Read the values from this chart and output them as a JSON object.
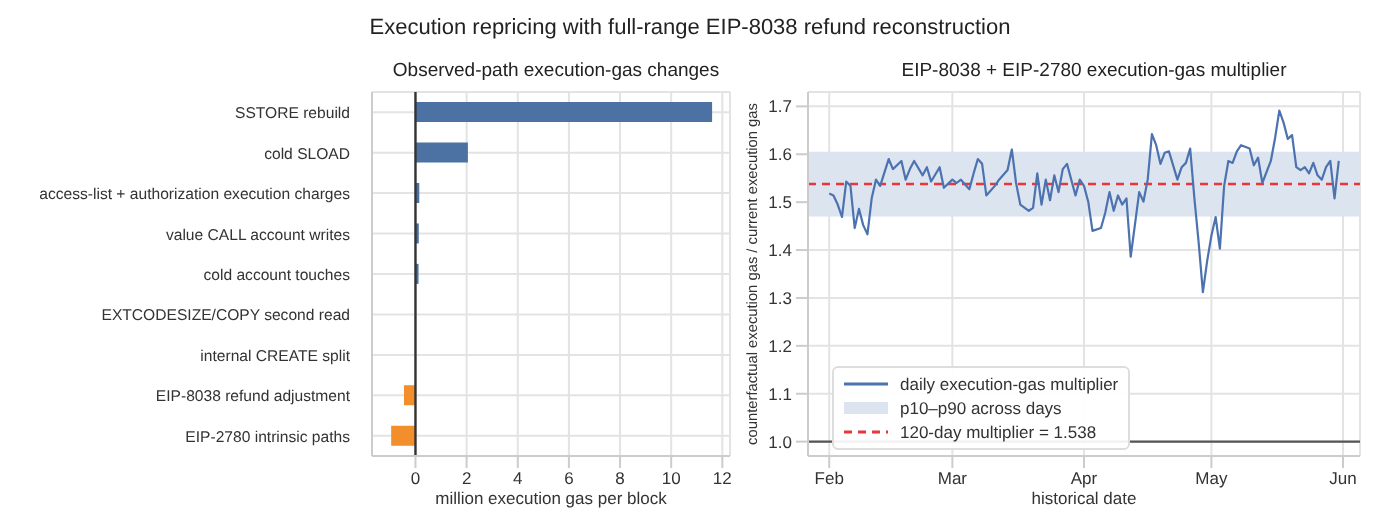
{
  "chart_data": [
    {
      "type": "bar",
      "title": "Execution repricing with full-range EIP-8038 refund reconstruction",
      "subtitle": "Observed-path execution-gas changes",
      "xlabel": "million execution gas per block",
      "orientation": "horizontal",
      "categories": [
        "SSTORE rebuild",
        "cold SLOAD",
        "access-list + authorization execution charges",
        "value CALL account writes",
        "cold account touches",
        "EXTCODESIZE/COPY second read",
        "internal CREATE split",
        "EIP-8038 refund adjustment",
        "EIP-2780 intrinsic paths"
      ],
      "values": [
        11.6,
        2.05,
        0.15,
        0.13,
        0.12,
        0.01,
        0.01,
        -0.45,
        -0.95
      ],
      "colors": [
        "#4c72a4",
        "#4c72a4",
        "#4c72a4",
        "#4c72a4",
        "#4c72a4",
        "#4c72a4",
        "#4c72a4",
        "#f28e2b",
        "#f28e2b"
      ],
      "xlim": [
        -1.7,
        12.3
      ],
      "xticks": [
        0,
        2,
        4,
        6,
        8,
        10,
        12
      ],
      "ref_lines": [
        {
          "axis": "x",
          "value": 0,
          "color": "#333333"
        }
      ],
      "grid": true
    },
    {
      "type": "line",
      "title": "EIP-8038 + EIP-2780 execution-gas multiplier",
      "xlabel": "historical date",
      "ylabel": "counterfactual execution gas / current execution gas",
      "x": [
        "--02-01",
        "--02-02",
        "--02-03",
        "--02-04",
        "--02-05",
        "--02-06",
        "--02-07",
        "--02-08",
        "--02-09",
        "--02-10",
        "--02-11",
        "--02-12",
        "--02-13",
        "--02-15",
        "--02-16",
        "--02-18",
        "--02-19",
        "--02-20",
        "--02-21",
        "--02-23",
        "--02-24",
        "--02-25",
        "--02-27",
        "--02-28",
        "--03-01",
        "--03-02",
        "--03-03",
        "--03-05",
        "--03-06",
        "--03-07",
        "--03-08",
        "--03-09",
        "--03-11",
        "--03-12",
        "--03-14",
        "--03-15",
        "--03-16",
        "--03-17",
        "--03-19",
        "--03-20",
        "--03-21",
        "--03-22",
        "--03-23",
        "--03-24",
        "--03-25",
        "--03-26",
        "--03-27",
        "--03-28",
        "--03-30",
        "--03-31",
        "--04-01",
        "--04-02",
        "--04-03",
        "--04-05",
        "--04-06",
        "--04-07",
        "--04-08",
        "--04-09",
        "--04-10",
        "--04-11",
        "--04-12",
        "--04-14",
        "--04-15",
        "--04-16",
        "--04-17",
        "--04-18",
        "--04-19",
        "--04-20",
        "--04-21",
        "--04-23",
        "--04-24",
        "--04-25",
        "--04-26",
        "--04-27",
        "--04-28",
        "--04-29",
        "--04-30",
        "--05-01",
        "--05-02",
        "--05-03",
        "--05-04",
        "--05-05",
        "--05-06",
        "--05-07",
        "--05-08",
        "--05-10",
        "--05-11",
        "--05-12",
        "--05-13",
        "--05-15",
        "--05-16",
        "--05-17",
        "--05-18",
        "--05-19",
        "--05-20",
        "--05-21",
        "--05-22",
        "--05-23",
        "--05-24",
        "--05-25",
        "--05-26",
        "--05-27",
        "--05-28",
        "--05-29",
        "--05-30",
        "--05-31"
      ],
      "series": [
        {
          "name": "daily execution-gas multiplier",
          "color": "#4c72b0",
          "values": [
            1.518,
            1.514,
            1.495,
            1.469,
            1.543,
            1.534,
            1.446,
            1.486,
            1.452,
            1.433,
            1.508,
            1.547,
            1.534,
            1.59,
            1.569,
            1.586,
            1.547,
            1.569,
            1.586,
            1.556,
            1.573,
            1.543,
            1.573,
            1.53,
            1.547,
            1.54,
            1.547,
            1.527,
            1.56,
            1.59,
            1.58,
            1.514,
            1.534,
            1.547,
            1.567,
            1.61,
            1.54,
            1.495,
            1.482,
            1.488,
            1.56,
            1.495,
            1.547,
            1.504,
            1.556,
            1.521,
            1.569,
            1.58,
            1.514,
            1.547,
            1.534,
            1.501,
            1.44,
            1.446,
            1.478,
            1.521,
            1.482,
            1.514,
            1.495,
            1.508,
            1.386,
            1.521,
            1.501,
            1.547,
            1.642,
            1.619,
            1.58,
            1.603,
            1.606,
            1.547,
            1.573,
            1.582,
            1.612,
            1.508,
            1.416,
            1.312,
            1.377,
            1.43,
            1.469,
            1.403,
            1.534,
            1.586,
            1.582,
            1.606,
            1.619,
            1.612,
            1.577,
            1.593,
            1.54,
            1.586,
            1.634,
            1.691,
            1.666,
            1.632,
            1.64,
            1.573,
            1.567,
            1.573,
            1.56,
            1.582,
            1.556,
            1.547,
            1.573,
            1.586,
            1.508,
            1.586
          ]
        }
      ],
      "xlim": [
        "--01-27",
        "--06-05"
      ],
      "xticks": [
        {
          "value": "--02-01",
          "label": "Feb"
        },
        {
          "value": "--03-01",
          "label": "Mar"
        },
        {
          "value": "--04-01",
          "label": "Apr"
        },
        {
          "value": "--05-01",
          "label": "May"
        },
        {
          "value": "--06-01",
          "label": "Jun"
        }
      ],
      "ylim": [
        0.97,
        1.73
      ],
      "yticks": [
        {
          "value": 1,
          "label": "1.0"
        },
        1.1,
        1.2,
        1.3,
        1.4,
        1.5,
        1.6,
        1.7
      ],
      "bands": [
        {
          "axis": "y",
          "from": 1.47,
          "to": 1.605,
          "label": "p10–p90 across days",
          "color": "#dce4ef"
        }
      ],
      "ref_lines": [
        {
          "axis": "y",
          "value": 1.538,
          "label": "120-day multiplier = 1.538",
          "color": "#e8363a",
          "line_style": "dashed"
        },
        {
          "axis": "y",
          "value": 1,
          "color": "#555555"
        }
      ],
      "grid": true,
      "legend": "bottom left"
    }
  ]
}
